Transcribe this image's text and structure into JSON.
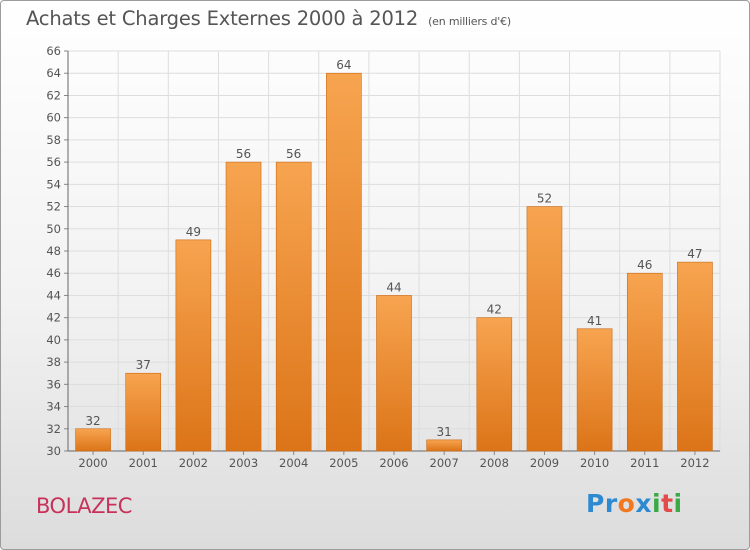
{
  "title": "Achats et Charges Externes 2000 à 2012",
  "unit_note": "(en milliers d'€)",
  "commune": "BOLAZEC",
  "logo_text": "Proxiti",
  "colors": {
    "bar_light": "#f7a450",
    "bar_dark": "#dc7418",
    "bar_edge": "#c96a15",
    "grid": "#dddddd",
    "text": "#555555",
    "commune": "#c8325a"
  },
  "chart_data": {
    "type": "bar",
    "title": "Achats et Charges Externes 2000 à 2012",
    "subtitle": "(en milliers d'€)",
    "categories": [
      "2000",
      "2001",
      "2002",
      "2003",
      "2004",
      "2005",
      "2006",
      "2007",
      "2008",
      "2009",
      "2010",
      "2011",
      "2012"
    ],
    "values": [
      32,
      37,
      49,
      56,
      56,
      64,
      44,
      31,
      42,
      52,
      41,
      46,
      47
    ],
    "ylim": [
      30,
      66
    ],
    "yticks": [
      30,
      32,
      34,
      36,
      38,
      40,
      42,
      44,
      46,
      48,
      50,
      52,
      54,
      56,
      58,
      60,
      62,
      64,
      66
    ],
    "grid": true,
    "data_labels": true
  }
}
